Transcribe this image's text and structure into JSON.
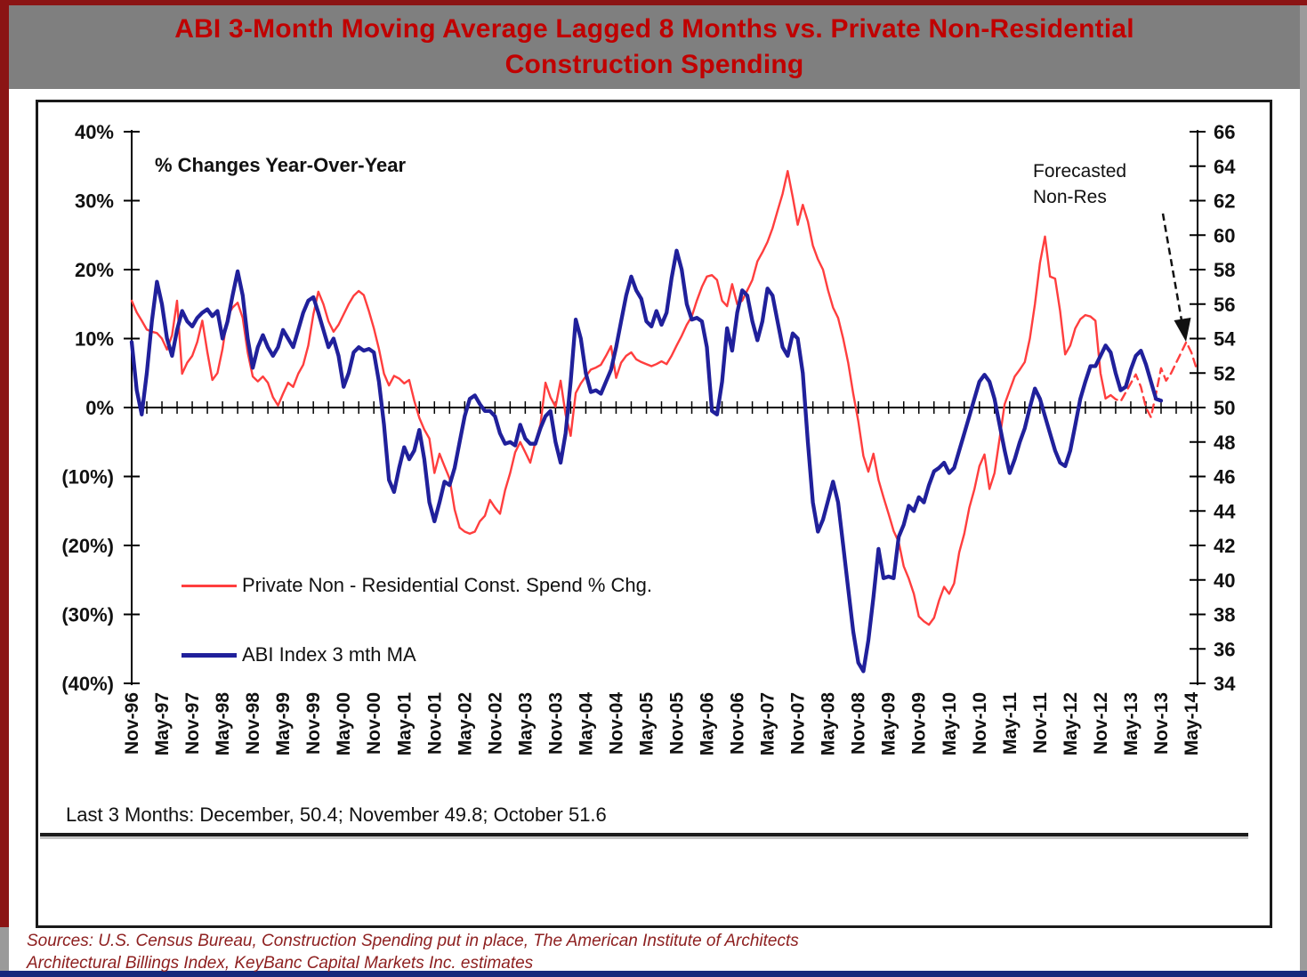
{
  "title_line1": "ABI  3-Month Moving Average Lagged 8 Months vs. Private Non-Residential",
  "title_line2": "Construction Spending",
  "colors": {
    "title_red": "#c00000",
    "header_gray": "#7f7f7f",
    "spend_line": "#ff3e3e",
    "abi_line": "#20209b",
    "axis_black": "#000000",
    "sources_red": "#8e2020",
    "bottom_strip_navy": "#17277c"
  },
  "chart_data": {
    "type": "line",
    "title": "ABI 3-Month Moving Average Lagged 8 Months vs. Private Non-Residential Construction Spending",
    "units_note": "% Changes Year-Over-Year",
    "grid": false,
    "legend_position": "inside-lower-left",
    "x_start": "Nov-96",
    "x_months_per_point": 1,
    "x_tick_interval_months": 6,
    "x_tick_labels": [
      "Nov-96",
      "May-97",
      "Nov-97",
      "May-98",
      "Nov-98",
      "May-99",
      "Nov-99",
      "May-00",
      "Nov-00",
      "May-01",
      "Nov-01",
      "May-02",
      "Nov-02",
      "May-03",
      "Nov-03",
      "May-04",
      "Nov-04",
      "May-05",
      "Nov-05",
      "May-06",
      "Nov-06",
      "May-07",
      "Nov-07",
      "May-08",
      "Nov-08",
      "May-09",
      "Nov-09",
      "May-10",
      "Nov-10",
      "May-11",
      "Nov-11",
      "May-12",
      "Nov-12",
      "May-13",
      "Nov-13",
      "May-14"
    ],
    "left_axis": {
      "ticks": [
        "40%",
        "30%",
        "20%",
        "10%",
        "0%",
        "(10%)",
        "(20%)",
        "(30%)",
        "(40%)"
      ],
      "values": [
        40,
        30,
        20,
        10,
        0,
        -10,
        -20,
        -30,
        -40
      ],
      "range": [
        -40,
        40
      ]
    },
    "right_axis": {
      "ticks": [
        66,
        64,
        62,
        60,
        58,
        56,
        54,
        52,
        50,
        48,
        46,
        44,
        42,
        40,
        38,
        36,
        34
      ],
      "range": [
        34,
        66
      ]
    },
    "series": [
      {
        "name": "Private Non - Residential Const. Spend % Chg.",
        "axis": "left",
        "color": "#ff3e3e",
        "width": 2.4,
        "forecast_from_index": 194,
        "monthly_values": [
          15.5,
          13.8,
          12.6,
          11.3,
          11.0,
          10.8,
          10.0,
          8.4,
          10.5,
          15.5,
          4.9,
          6.5,
          7.5,
          9.5,
          12.6,
          8.0,
          4.0,
          5.0,
          8.5,
          13.3,
          14.5,
          15.2,
          13.0,
          8.0,
          4.5,
          3.8,
          4.5,
          3.6,
          1.5,
          0.3,
          2.0,
          3.6,
          3.0,
          4.9,
          6.2,
          9.0,
          13.5,
          16.8,
          15.0,
          12.5,
          11.0,
          12.0,
          13.5,
          15.0,
          16.2,
          16.9,
          16.3,
          14.0,
          11.5,
          8.5,
          4.9,
          3.2,
          4.6,
          4.2,
          3.5,
          4.0,
          1.0,
          -1.5,
          -3.2,
          -4.5,
          -9.5,
          -6.7,
          -8.5,
          -10.3,
          -14.8,
          -17.4,
          -18.0,
          -18.3,
          -18.0,
          -16.5,
          -15.7,
          -13.4,
          -14.5,
          -15.4,
          -12.0,
          -9.5,
          -6.5,
          -5.0,
          -6.5,
          -8.0,
          -5.0,
          -2.5,
          3.6,
          1.5,
          0.1,
          3.9,
          -1.0,
          -4.1,
          2.1,
          3.5,
          4.5,
          5.5,
          5.8,
          6.2,
          7.5,
          8.9,
          4.3,
          6.5,
          7.5,
          8.0,
          7.0,
          6.6,
          6.3,
          6.0,
          6.3,
          6.7,
          6.3,
          7.5,
          9.0,
          10.4,
          12.0,
          13.2,
          15.5,
          17.5,
          19.0,
          19.2,
          18.5,
          15.5,
          14.7,
          17.9,
          15.0,
          15.5,
          17.0,
          18.5,
          21.2,
          22.5,
          24.0,
          26.0,
          28.5,
          31.0,
          34.3,
          30.5,
          26.5,
          29.4,
          27.0,
          23.5,
          21.5,
          20.0,
          17.0,
          14.5,
          13.0,
          10.0,
          6.5,
          2.0,
          -2.0,
          -7.0,
          -9.3,
          -6.7,
          -10.5,
          -13.0,
          -15.4,
          -17.9,
          -19.5,
          -23.0,
          -24.8,
          -27.0,
          -30.3,
          -31.0,
          -31.5,
          -30.5,
          -28.0,
          -26.0,
          -27.0,
          -25.5,
          -21.0,
          -18.3,
          -14.5,
          -11.9,
          -8.5,
          -6.8,
          -11.8,
          -9.5,
          -4.5,
          0.5,
          2.5,
          4.5,
          5.5,
          6.6,
          10.0,
          15.0,
          21.0,
          24.8,
          19.0,
          18.7,
          14.0,
          7.7,
          9.0,
          11.5,
          12.8,
          13.4,
          13.2,
          12.6,
          5.0,
          1.3,
          1.8,
          1.2,
          0.9,
          2.2,
          3.5,
          4.8,
          3.0,
          0.0,
          -1.4,
          2.0,
          5.7,
          3.9,
          5.0,
          6.5,
          8.0,
          9.5,
          8.0,
          5.7
        ]
      },
      {
        "name": "ABI Index 3 mth MA",
        "axis": "right",
        "color": "#20209b",
        "width": 4.3,
        "monthly_values": [
          53.8,
          51.0,
          49.6,
          52.0,
          55.0,
          57.3,
          56.0,
          54.0,
          53.0,
          54.5,
          55.6,
          55.0,
          54.7,
          55.2,
          55.5,
          55.7,
          55.3,
          55.6,
          54.0,
          55.0,
          56.5,
          57.9,
          56.5,
          54.0,
          52.3,
          53.5,
          54.2,
          53.5,
          53.0,
          53.5,
          54.5,
          54.0,
          53.5,
          54.5,
          55.5,
          56.2,
          56.4,
          55.5,
          54.5,
          53.5,
          54.0,
          53.0,
          51.2,
          52.0,
          53.2,
          53.5,
          53.3,
          53.4,
          53.2,
          51.5,
          49.0,
          45.8,
          45.1,
          46.5,
          47.7,
          47.0,
          47.5,
          48.7,
          47.0,
          44.5,
          43.4,
          44.5,
          45.7,
          45.5,
          46.5,
          48.0,
          49.5,
          50.5,
          50.7,
          50.2,
          49.8,
          49.8,
          49.5,
          48.5,
          47.9,
          48.0,
          47.8,
          49.0,
          48.2,
          47.9,
          47.9,
          48.8,
          49.5,
          49.8,
          48.0,
          46.8,
          48.5,
          51.5,
          55.1,
          54.0,
          52.0,
          50.9,
          51.0,
          50.8,
          51.5,
          52.2,
          53.5,
          55.0,
          56.5,
          57.6,
          56.8,
          56.3,
          55.0,
          54.7,
          55.6,
          54.8,
          55.5,
          57.5,
          59.1,
          58.0,
          56.0,
          55.1,
          55.2,
          55.0,
          53.5,
          49.8,
          49.6,
          51.5,
          54.6,
          53.3,
          55.5,
          56.8,
          56.5,
          55.0,
          53.9,
          55.0,
          56.9,
          56.5,
          55.0,
          53.5,
          53.0,
          54.3,
          54.0,
          52.0,
          48.0,
          44.5,
          42.8,
          43.5,
          44.6,
          45.7,
          44.5,
          42.0,
          39.5,
          37.0,
          35.2,
          34.7,
          36.5,
          39.0,
          41.8,
          40.1,
          40.2,
          40.1,
          42.5,
          43.2,
          44.3,
          44.0,
          44.8,
          44.5,
          45.5,
          46.3,
          46.5,
          46.8,
          46.2,
          46.5,
          47.5,
          48.5,
          49.5,
          50.5,
          51.5,
          51.9,
          51.5,
          50.5,
          49.0,
          47.5,
          46.2,
          47.0,
          48.0,
          48.8,
          50.0,
          51.1,
          50.5,
          49.5,
          48.5,
          47.5,
          46.8,
          46.6,
          47.5,
          49.0,
          50.5,
          51.5,
          52.4,
          52.4,
          53.0,
          53.6,
          53.2,
          52.0,
          51.0,
          51.2,
          52.2,
          53.0,
          53.3,
          52.5,
          51.5,
          50.5,
          50.4
        ]
      }
    ],
    "annotations": {
      "forecast_line1": "Forecasted",
      "forecast_line2": "Non-Res"
    }
  },
  "footer": {
    "last3": "Last 3 Months:  December, 50.4; November 49.8; October 51.6",
    "sources_line1": "Sources: U.S. Census Bureau, Construction Spending put in place, The American Institute of Architects",
    "sources_line2": "Architectural Billings Index, KeyBanc Capital Markets Inc. estimates"
  }
}
